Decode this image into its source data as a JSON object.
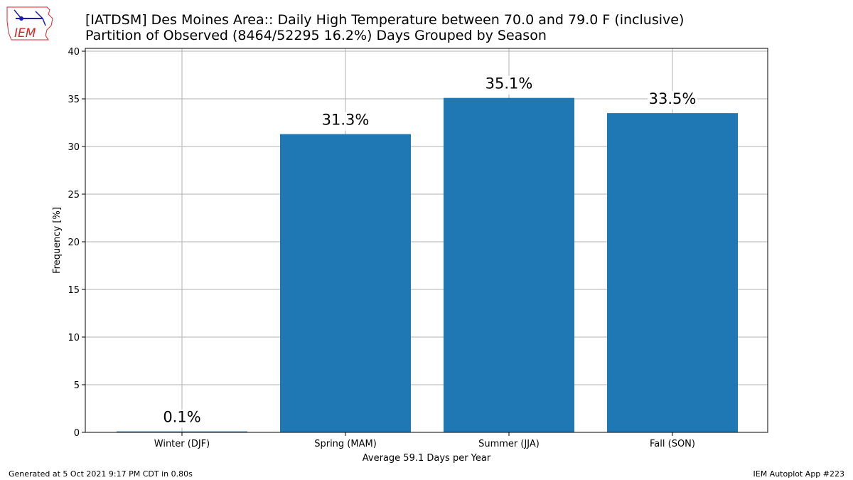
{
  "header": {
    "title_line1": "[IATDSM] Des Moines Area:: Daily High Temperature between 70.0 and 79.0 F (inclusive)",
    "title_line2": "Partition of Observed (8464/52295 16.2%) Days Grouped by Season"
  },
  "logo": {
    "text": "IEM",
    "icon": "iem-logo"
  },
  "footer": {
    "left": "Generated at 5 Oct 2021 9:17 PM CDT in 0.80s",
    "right": "IEM Autoplot App #223"
  },
  "chart_data": {
    "type": "bar",
    "title": "[IATDSM] Des Moines Area:: Daily High Temperature between 70.0 and 79.0 F (inclusive)",
    "subtitle": "Partition of Observed (8464/52295 16.2%) Days Grouped by Season",
    "categories": [
      "Winter (DJF)",
      "Spring (MAM)",
      "Summer (JJA)",
      "Fall (SON)"
    ],
    "values": [
      0.1,
      31.3,
      35.1,
      33.5
    ],
    "data_labels": [
      "0.1%",
      "31.3%",
      "35.1%",
      "33.5%"
    ],
    "xlabel": "Average 59.1 Days per Year",
    "ylabel": "Frequency [%]",
    "ylim": [
      0,
      40.3
    ],
    "yticks": [
      0,
      5,
      10,
      15,
      20,
      25,
      30,
      35,
      40
    ],
    "grid": true,
    "bar_color": "#1f77b4"
  }
}
